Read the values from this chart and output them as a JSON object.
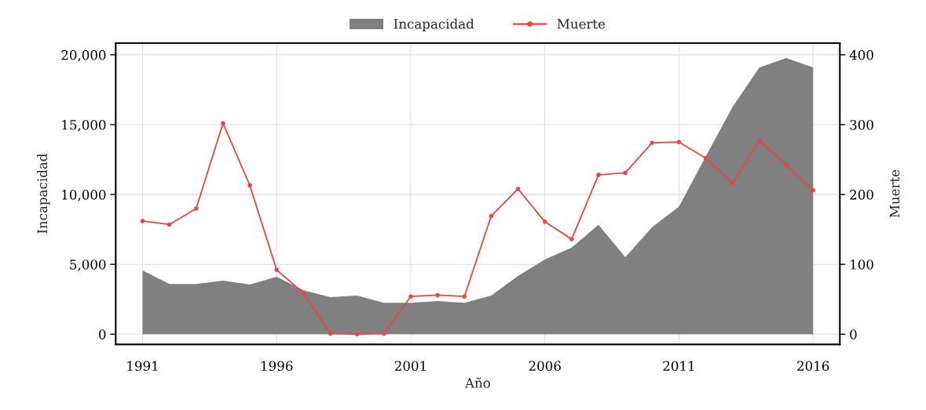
{
  "chart_data": {
    "type": "area",
    "xlabel": "Año",
    "ylabel": "Incapacidad",
    "y2label": "Muerte",
    "x": [
      1991,
      1992,
      1993,
      1994,
      1995,
      1996,
      1997,
      1998,
      1999,
      2000,
      2001,
      2002,
      2003,
      2004,
      2005,
      2006,
      2007,
      2008,
      2009,
      2010,
      2011,
      2012,
      2013,
      2014,
      2015,
      2016
    ],
    "series": [
      {
        "name": "Incapacidad",
        "color": "#808080",
        "values": [
          4560,
          3600,
          3600,
          3830,
          3550,
          4110,
          3150,
          2650,
          2760,
          2250,
          2250,
          2370,
          2250,
          2760,
          4170,
          5350,
          6200,
          7830,
          5520,
          7660,
          9130,
          12730,
          16280,
          19100,
          19770,
          19100
        ]
      },
      {
        "name": "Muerte",
        "type": "line",
        "axis": "y2",
        "color": "#f0433a",
        "marker": "circle",
        "line_style": "solid",
        "values": [
          162,
          157,
          180,
          302,
          213,
          92,
          59,
          1,
          0,
          1,
          54,
          56,
          54,
          169,
          208,
          161,
          136,
          228,
          231,
          274,
          275,
          252,
          216,
          277,
          242,
          206
        ]
      }
    ],
    "xlim": [
      1990,
      2017
    ],
    "xticks": [
      1991,
      1996,
      2001,
      2006,
      2011,
      2016
    ],
    "ylim": [
      -730,
      20840
    ],
    "yticks": [
      0,
      {
        "value": 5000,
        "label": "5,000"
      },
      {
        "value": 10000,
        "label": "10,000"
      },
      {
        "value": 15000,
        "label": "15,000"
      },
      {
        "value": 20000,
        "label": "20,000"
      }
    ],
    "y2lim": [
      -14.6,
      416.8
    ],
    "y2ticks": [
      0,
      100,
      200,
      300,
      400
    ],
    "grid": true,
    "legend": "top"
  }
}
